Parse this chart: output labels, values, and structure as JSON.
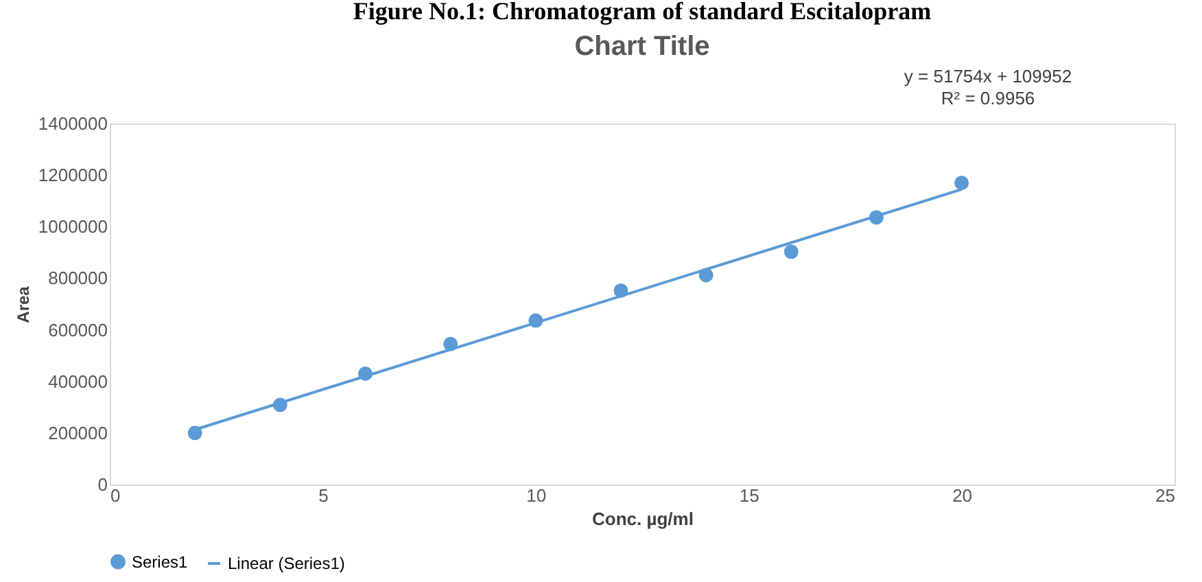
{
  "chart_data": {
    "type": "scatter",
    "title": "Chart Title",
    "xlabel": "Conc. µg/ml",
    "ylabel": "Area",
    "annotations": [
      "Figure No.1: Chromatogram of standard Escitalopram",
      "y = 51754x + 109952",
      "R² = 0.9956"
    ],
    "x": [
      2,
      4,
      6,
      8,
      10,
      12,
      14,
      16,
      18,
      20
    ],
    "series": [
      {
        "name": "Series1",
        "color": "#5b9bd5",
        "marker": "circle",
        "values": [
          200000,
          309000,
          430000,
          545000,
          636000,
          752000,
          812000,
          903000,
          1036000,
          1170000
        ]
      },
      {
        "name": "Linear (Series1)",
        "color": "#5b9bd5",
        "type": "line",
        "marker": "none",
        "x": [
          2,
          20
        ],
        "values": [
          213000,
          1145000
        ]
      }
    ],
    "xlim": [
      0,
      25
    ],
    "xticks": [
      0,
      5,
      10,
      15,
      20,
      25
    ],
    "ylim": [
      0,
      1400000
    ],
    "yticks": [
      0,
      200000,
      400000,
      600000,
      800000,
      1000000,
      1200000,
      1400000
    ],
    "grid": false,
    "legend": "bottom"
  }
}
